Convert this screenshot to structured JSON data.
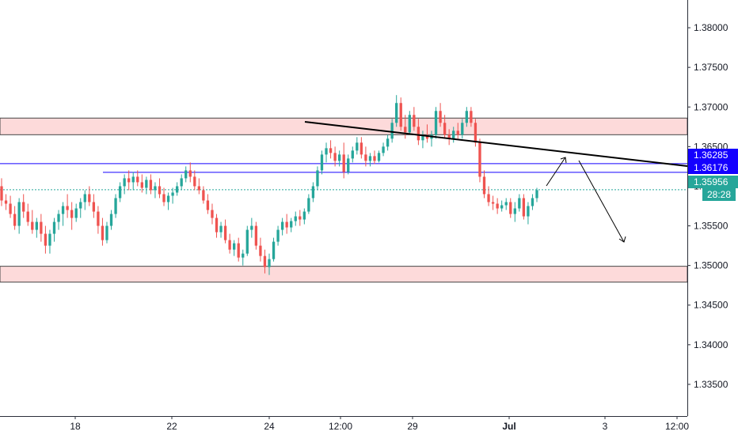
{
  "chart_data": {
    "type": "candlestick",
    "ylim": [
      1.331,
      1.3835
    ],
    "price_axis_ticks": [
      "1.38000",
      "1.37500",
      "1.37000",
      "1.36500",
      "1.36000",
      "1.35500",
      "1.35000",
      "1.34500",
      "1.34000",
      "1.33500"
    ],
    "time_axis_ticks": [
      "18",
      "22",
      "24",
      "12:00",
      "29",
      "Jul",
      "3",
      "12:00"
    ],
    "grid": false,
    "colors": {
      "up": "#26a69a",
      "down": "#ef5350",
      "zone_fill": "#fddada",
      "zone_border": "#444444",
      "blue_line": "#1400ff",
      "trend_line": "#000000",
      "current_price_line": "#26a69a"
    },
    "price_labels": [
      {
        "text": "1.36285",
        "value": 1.36285,
        "color": "#1400ff"
      },
      {
        "text": "1.36176",
        "value": 1.36176,
        "color": "#1400ff"
      },
      {
        "text": "1.35956",
        "value": 1.35956,
        "color": "#26a69a"
      }
    ],
    "countdown": "28:28",
    "supply_zone": [
      1.3665,
      1.3686
    ],
    "demand_zone": [
      1.3479,
      1.3499
    ],
    "horizontal_levels": [
      1.36285,
      1.36176
    ],
    "current_price": 1.35956,
    "candles": [
      [
        1.36,
        1.361,
        1.3575,
        1.3582
      ],
      [
        1.3582,
        1.359,
        1.357,
        1.3578
      ],
      [
        1.3578,
        1.3588,
        1.356,
        1.3565
      ],
      [
        1.3565,
        1.3575,
        1.3545,
        1.355
      ],
      [
        1.355,
        1.3585,
        1.354,
        1.358
      ],
      [
        1.358,
        1.359,
        1.356,
        1.3568
      ],
      [
        1.3568,
        1.3578,
        1.355,
        1.3555
      ],
      [
        1.3555,
        1.357,
        1.354,
        1.3545
      ],
      [
        1.3545,
        1.356,
        1.3535,
        1.3555
      ],
      [
        1.3555,
        1.3565,
        1.353,
        1.354
      ],
      [
        1.354,
        1.355,
        1.3515,
        1.3525
      ],
      [
        1.3525,
        1.3545,
        1.3515,
        1.354
      ],
      [
        1.354,
        1.356,
        1.353,
        1.3555
      ],
      [
        1.3555,
        1.357,
        1.3545,
        1.3565
      ],
      [
        1.3565,
        1.358,
        1.355,
        1.3575
      ],
      [
        1.3575,
        1.359,
        1.356,
        1.357
      ],
      [
        1.357,
        1.358,
        1.3545,
        1.356
      ],
      [
        1.356,
        1.3578,
        1.3555,
        1.3572
      ],
      [
        1.3572,
        1.3585,
        1.356,
        1.358
      ],
      [
        1.358,
        1.3595,
        1.357,
        1.359
      ],
      [
        1.359,
        1.36,
        1.3575,
        1.358
      ],
      [
        1.358,
        1.359,
        1.356,
        1.3568
      ],
      [
        1.3568,
        1.3575,
        1.354,
        1.355
      ],
      [
        1.355,
        1.356,
        1.3525,
        1.3532
      ],
      [
        1.3532,
        1.3555,
        1.3528,
        1.355
      ],
      [
        1.355,
        1.357,
        1.3545,
        1.3565
      ],
      [
        1.3565,
        1.359,
        1.356,
        1.3585
      ],
      [
        1.3585,
        1.3605,
        1.358,
        1.36
      ],
      [
        1.36,
        1.3615,
        1.359,
        1.361
      ],
      [
        1.361,
        1.362,
        1.3595,
        1.3605
      ],
      [
        1.3605,
        1.3618,
        1.3595,
        1.3612
      ],
      [
        1.3612,
        1.362,
        1.36,
        1.3605
      ],
      [
        1.3605,
        1.3615,
        1.3592,
        1.3598
      ],
      [
        1.3598,
        1.3612,
        1.359,
        1.3608
      ],
      [
        1.3608,
        1.3615,
        1.359,
        1.3595
      ],
      [
        1.3595,
        1.3605,
        1.3585,
        1.36
      ],
      [
        1.36,
        1.361,
        1.3585,
        1.359
      ],
      [
        1.359,
        1.3598,
        1.3575,
        1.358
      ],
      [
        1.358,
        1.3592,
        1.357,
        1.3588
      ],
      [
        1.3588,
        1.3598,
        1.3578,
        1.3592
      ],
      [
        1.3592,
        1.3605,
        1.3588,
        1.36
      ],
      [
        1.36,
        1.3615,
        1.3595,
        1.361
      ],
      [
        1.361,
        1.3625,
        1.3605,
        1.362
      ],
      [
        1.362,
        1.363,
        1.3605,
        1.3612
      ],
      [
        1.3612,
        1.362,
        1.3595,
        1.36
      ],
      [
        1.36,
        1.361,
        1.359,
        1.3595
      ],
      [
        1.3595,
        1.36,
        1.3578,
        1.3582
      ],
      [
        1.3582,
        1.359,
        1.3565,
        1.357
      ],
      [
        1.357,
        1.3578,
        1.3552,
        1.356
      ],
      [
        1.356,
        1.3565,
        1.3535,
        1.3542
      ],
      [
        1.3542,
        1.3555,
        1.3535,
        1.355
      ],
      [
        1.355,
        1.3558,
        1.3528,
        1.3532
      ],
      [
        1.3532,
        1.354,
        1.3515,
        1.352
      ],
      [
        1.352,
        1.3532,
        1.3512,
        1.3528
      ],
      [
        1.3528,
        1.3535,
        1.3505,
        1.351
      ],
      [
        1.351,
        1.352,
        1.35,
        1.3515
      ],
      [
        1.3515,
        1.355,
        1.3512,
        1.3545
      ],
      [
        1.3545,
        1.356,
        1.3535,
        1.355
      ],
      [
        1.355,
        1.3555,
        1.352,
        1.3525
      ],
      [
        1.3525,
        1.3535,
        1.3505,
        1.3512
      ],
      [
        1.3512,
        1.352,
        1.349,
        1.3498
      ],
      [
        1.3498,
        1.3515,
        1.3488,
        1.3508
      ],
      [
        1.3508,
        1.3535,
        1.3505,
        1.353
      ],
      [
        1.353,
        1.355,
        1.3525,
        1.3545
      ],
      [
        1.3545,
        1.356,
        1.3538,
        1.3555
      ],
      [
        1.3555,
        1.3565,
        1.354,
        1.3548
      ],
      [
        1.3548,
        1.356,
        1.3542,
        1.3556
      ],
      [
        1.3556,
        1.3568,
        1.355,
        1.3562
      ],
      [
        1.3562,
        1.357,
        1.355,
        1.3558
      ],
      [
        1.3558,
        1.3572,
        1.3552,
        1.3568
      ],
      [
        1.3568,
        1.359,
        1.3565,
        1.3585
      ],
      [
        1.3585,
        1.3605,
        1.358,
        1.36
      ],
      [
        1.36,
        1.3625,
        1.3595,
        1.362
      ],
      [
        1.362,
        1.3645,
        1.3615,
        1.364
      ],
      [
        1.364,
        1.3655,
        1.363,
        1.3648
      ],
      [
        1.3648,
        1.3658,
        1.3635,
        1.3642
      ],
      [
        1.3642,
        1.365,
        1.3625,
        1.3632
      ],
      [
        1.3632,
        1.3645,
        1.3625,
        1.364
      ],
      [
        1.364,
        1.3655,
        1.361,
        1.3618
      ],
      [
        1.3618,
        1.364,
        1.3615,
        1.3635
      ],
      [
        1.3635,
        1.365,
        1.363,
        1.3645
      ],
      [
        1.3645,
        1.3662,
        1.364,
        1.3655
      ],
      [
        1.3655,
        1.3662,
        1.3635,
        1.364
      ],
      [
        1.364,
        1.365,
        1.3625,
        1.3632
      ],
      [
        1.3632,
        1.3642,
        1.3625,
        1.3638
      ],
      [
        1.3638,
        1.3645,
        1.3628,
        1.3632
      ],
      [
        1.3632,
        1.3645,
        1.363,
        1.3642
      ],
      [
        1.3642,
        1.3655,
        1.3638,
        1.365
      ],
      [
        1.365,
        1.3665,
        1.3645,
        1.366
      ],
      [
        1.366,
        1.3685,
        1.3655,
        1.368
      ],
      [
        1.368,
        1.3715,
        1.3675,
        1.3705
      ],
      [
        1.3705,
        1.3712,
        1.367,
        1.3675
      ],
      [
        1.3675,
        1.369,
        1.366,
        1.3668
      ],
      [
        1.3668,
        1.3695,
        1.3665,
        1.369
      ],
      [
        1.369,
        1.37,
        1.367,
        1.3675
      ],
      [
        1.3675,
        1.3685,
        1.3652,
        1.3658
      ],
      [
        1.3658,
        1.367,
        1.3648,
        1.3664
      ],
      [
        1.3664,
        1.3678,
        1.3655,
        1.366
      ],
      [
        1.366,
        1.367,
        1.365,
        1.3665
      ],
      [
        1.3665,
        1.37,
        1.366,
        1.3695
      ],
      [
        1.3695,
        1.3705,
        1.3675,
        1.368
      ],
      [
        1.368,
        1.369,
        1.366,
        1.3665
      ],
      [
        1.3665,
        1.3672,
        1.3652,
        1.366
      ],
      [
        1.366,
        1.3675,
        1.3655,
        1.367
      ],
      [
        1.367,
        1.368,
        1.366,
        1.3665
      ],
      [
        1.3665,
        1.3685,
        1.366,
        1.368
      ],
      [
        1.368,
        1.37,
        1.3675,
        1.3695
      ],
      [
        1.3695,
        1.37,
        1.3675,
        1.368
      ],
      [
        1.368,
        1.3685,
        1.365,
        1.3655
      ],
      [
        1.3655,
        1.366,
        1.3605,
        1.3612
      ],
      [
        1.3612,
        1.362,
        1.3585,
        1.359
      ],
      [
        1.359,
        1.36,
        1.3575,
        1.358
      ],
      [
        1.358,
        1.3588,
        1.357,
        1.3578
      ],
      [
        1.3578,
        1.3585,
        1.3565,
        1.3572
      ],
      [
        1.3572,
        1.3582,
        1.3568,
        1.3576
      ],
      [
        1.3576,
        1.3585,
        1.357,
        1.358
      ],
      [
        1.358,
        1.3585,
        1.356,
        1.3565
      ],
      [
        1.3565,
        1.358,
        1.3555,
        1.3572
      ],
      [
        1.3572,
        1.359,
        1.3568,
        1.3585
      ],
      [
        1.3585,
        1.359,
        1.3558,
        1.3562
      ],
      [
        1.3562,
        1.358,
        1.3552,
        1.3575
      ],
      [
        1.3575,
        1.359,
        1.357,
        1.3585
      ],
      [
        1.3585,
        1.3598,
        1.358,
        1.3595
      ]
    ]
  }
}
